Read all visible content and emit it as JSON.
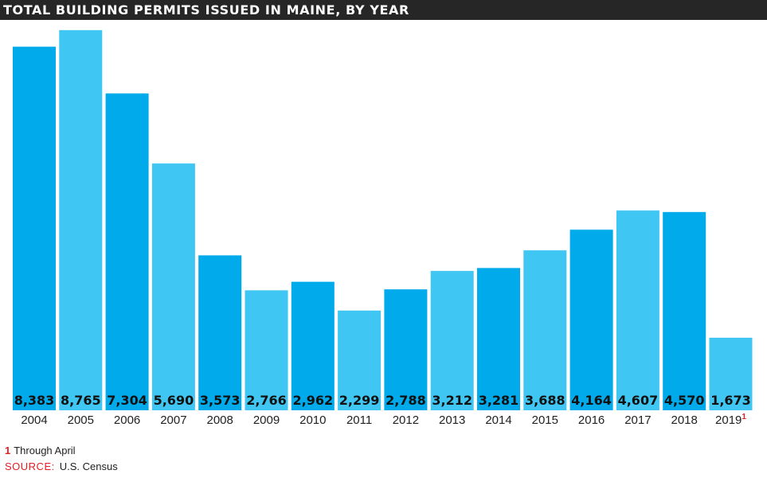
{
  "header": {
    "title": "TOTAL BUILDING PERMITS ISSUED IN MAINE, BY YEAR"
  },
  "colors": {
    "dark_bar": "#00aaeb",
    "light_bar": "#3fc6f2",
    "title_bg": "#262626",
    "footnote_accent": "#e31e24"
  },
  "chart_data": {
    "type": "bar",
    "title": "TOTAL BUILDING PERMITS ISSUED IN MAINE, BY YEAR",
    "categories": [
      "2004",
      "2005",
      "2006",
      "2007",
      "2008",
      "2009",
      "2010",
      "2011",
      "2012",
      "2013",
      "2014",
      "2015",
      "2016",
      "2017",
      "2018",
      "2019"
    ],
    "values": [
      8383,
      8765,
      7304,
      5690,
      3573,
      2766,
      2962,
      2299,
      2788,
      3212,
      3281,
      3688,
      4164,
      4607,
      4570,
      1673
    ],
    "value_labels": [
      "8,383",
      "8,765",
      "7,304",
      "5,690",
      "3,573",
      "2,766",
      "2,962",
      "2,299",
      "2,788",
      "3,212",
      "3,281",
      "3,688",
      "4,164",
      "4,607",
      "4,570",
      "1,673"
    ],
    "category_markers": [
      "",
      "",
      "",
      "",
      "",
      "",
      "",
      "",
      "",
      "",
      "",
      "",
      "",
      "",
      "",
      "1"
    ],
    "xlabel": "",
    "ylabel": "",
    "ylim": [
      0,
      9000
    ],
    "grid": false,
    "legend": "none"
  },
  "footnotes": {
    "note_number": "1",
    "note_text": "Through April",
    "source_label": "SOURCE:",
    "source_text": "U.S. Census"
  }
}
